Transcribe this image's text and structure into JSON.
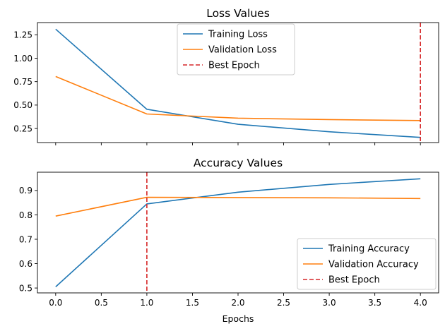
{
  "chart_data": [
    {
      "type": "line",
      "title": "Loss Values",
      "xlabel": "",
      "ylabel": "",
      "x": [
        0,
        1,
        2,
        3,
        4
      ],
      "xlim": [
        -0.2,
        4.2
      ],
      "ylim": [
        0.1,
        1.38
      ],
      "xticks": [
        "",
        "",
        "",
        "",
        "",
        "",
        "",
        "",
        ""
      ],
      "xtick_values": [
        0,
        0.5,
        1,
        1.5,
        2,
        2.5,
        3,
        3.5,
        4
      ],
      "yticks": [
        "0.25",
        "0.50",
        "0.75",
        "1.00",
        "1.25"
      ],
      "ytick_values": [
        0.25,
        0.5,
        0.75,
        1.0,
        1.25
      ],
      "series": [
        {
          "name": "Training Loss",
          "values": [
            1.31,
            0.455,
            0.295,
            0.215,
            0.155
          ],
          "color": "#1f77b4"
        },
        {
          "name": "Validation Loss",
          "values": [
            0.805,
            0.405,
            0.36,
            0.345,
            0.335
          ],
          "color": "#ff7f0e"
        }
      ],
      "vline": {
        "name": "Best Epoch",
        "x": 4,
        "color": "#d62728"
      },
      "legend_position": "top-center",
      "grid": false
    },
    {
      "type": "line",
      "title": "Accuracy Values",
      "xlabel": "Epochs",
      "ylabel": "",
      "x": [
        0,
        1,
        2,
        3,
        4
      ],
      "xlim": [
        -0.2,
        4.2
      ],
      "ylim": [
        0.48,
        0.975
      ],
      "xticks": [
        "0.0",
        "0.5",
        "1.0",
        "1.5",
        "2.0",
        "2.5",
        "3.0",
        "3.5",
        "4.0"
      ],
      "xtick_values": [
        0,
        0.5,
        1,
        1.5,
        2,
        2.5,
        3,
        3.5,
        4
      ],
      "yticks": [
        "0.5",
        "0.6",
        "0.7",
        "0.8",
        "0.9"
      ],
      "ytick_values": [
        0.5,
        0.6,
        0.7,
        0.8,
        0.9
      ],
      "series": [
        {
          "name": "Training Accuracy",
          "values": [
            0.505,
            0.845,
            0.893,
            0.925,
            0.948
          ],
          "color": "#1f77b4"
        },
        {
          "name": "Validation Accuracy",
          "values": [
            0.795,
            0.872,
            0.871,
            0.87,
            0.867
          ],
          "color": "#ff7f0e"
        }
      ],
      "vline": {
        "name": "Best Epoch",
        "x": 1,
        "color": "#d62728"
      },
      "legend_position": "lower-right",
      "grid": false
    }
  ]
}
